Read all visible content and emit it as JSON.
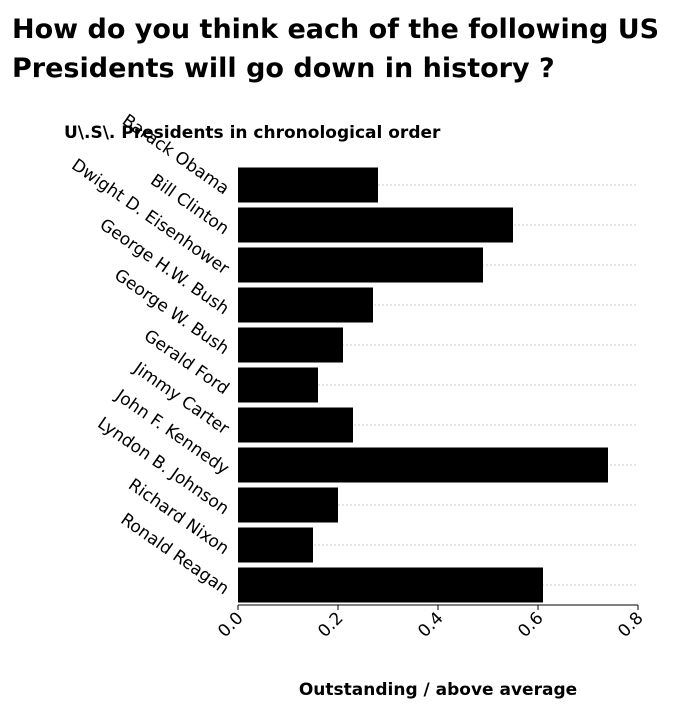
{
  "chart_data": {
    "type": "bar",
    "orientation": "horizontal",
    "title": "How do you think each of the following US Presidents will go down in history ?",
    "xlabel": "Outstanding / above average",
    "ylabel": "U\\.S\\. Presidents in chronological order",
    "categories": [
      "Barack Obama",
      "Bill Clinton",
      "Dwight D. Eisenhower",
      "George H.W. Bush",
      "George W. Bush",
      "Gerald Ford",
      "Jimmy Carter",
      "John F. Kennedy",
      "Lyndon B. Johnson",
      "Richard Nixon",
      "Ronald Reagan"
    ],
    "values": [
      0.28,
      0.55,
      0.49,
      0.27,
      0.21,
      0.16,
      0.23,
      0.74,
      0.2,
      0.15,
      0.61
    ],
    "xlim": [
      0,
      0.8
    ],
    "xticks": [
      "0.0",
      "0.2",
      "0.4",
      "0.6",
      "0.8"
    ],
    "bar_color": "#000000",
    "grid": "horizontal dotted",
    "legend": "none"
  }
}
